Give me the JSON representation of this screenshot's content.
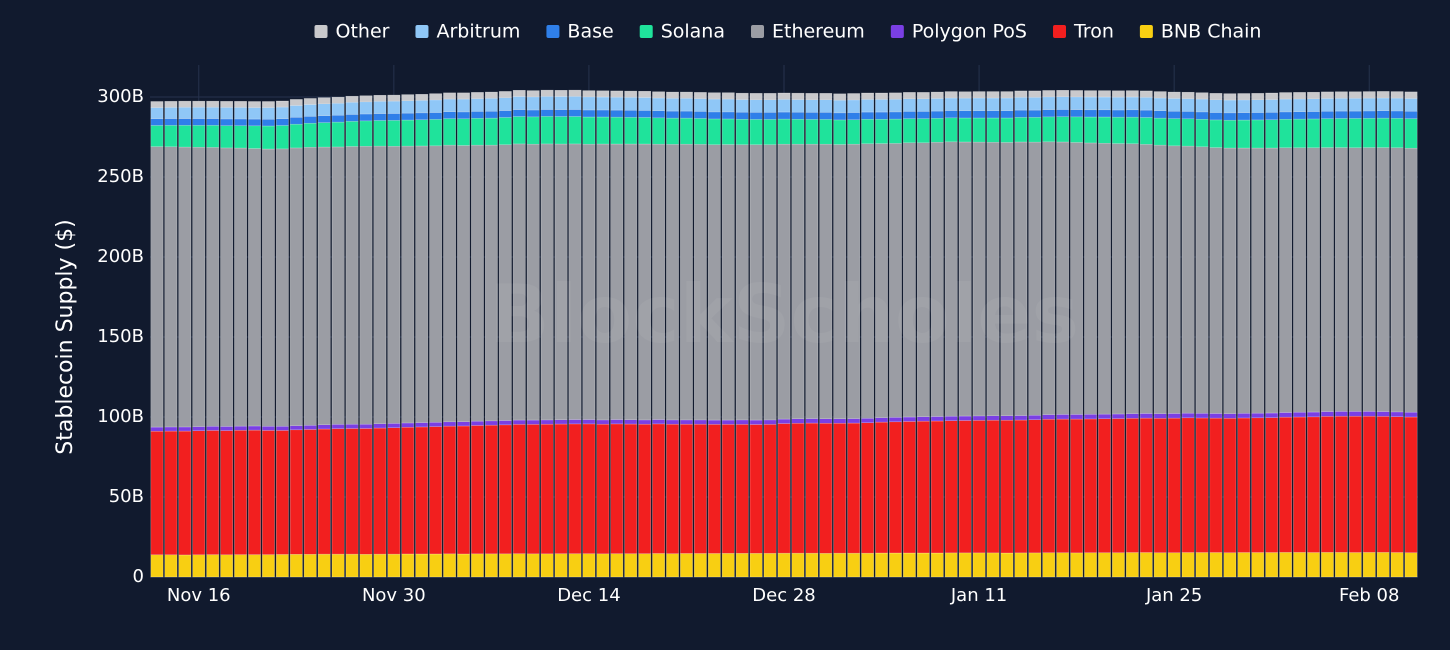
{
  "chart_data": {
    "type": "stacked_bar",
    "y_label": "Stablecoin Supply ($)",
    "watermark": "BlockScholes",
    "legend": "top",
    "grid": true,
    "ylim": [
      0,
      320
    ],
    "yticks": [
      {
        "value": 0,
        "label": "0"
      },
      {
        "value": 50,
        "label": "50B"
      },
      {
        "value": 100,
        "label": "100B"
      },
      {
        "value": 150,
        "label": "150B"
      },
      {
        "value": 200,
        "label": "200B"
      },
      {
        "value": 250,
        "label": "250B"
      },
      {
        "value": 300,
        "label": "300B"
      }
    ],
    "categories": [
      null,
      null,
      null,
      "Nov 16",
      null,
      null,
      null,
      null,
      null,
      null,
      null,
      null,
      null,
      null,
      null,
      null,
      null,
      "Nov 30",
      null,
      null,
      null,
      null,
      null,
      null,
      null,
      null,
      null,
      null,
      null,
      null,
      null,
      "Dec 14",
      null,
      null,
      null,
      null,
      null,
      null,
      null,
      null,
      null,
      null,
      null,
      null,
      null,
      "Dec 28",
      null,
      null,
      null,
      null,
      null,
      null,
      null,
      null,
      null,
      null,
      null,
      null,
      null,
      "Jan 11",
      null,
      null,
      null,
      null,
      null,
      null,
      null,
      null,
      null,
      null,
      null,
      null,
      null,
      "Jan 25",
      null,
      null,
      null,
      null,
      null,
      null,
      null,
      null,
      null,
      null,
      null,
      null,
      null,
      "Feb 08",
      null,
      null,
      null
    ],
    "series": [
      {
        "name": "Other",
        "color": "#c9c9cc",
        "values": [
          3.8,
          3.8,
          3.8,
          3.8,
          3.8,
          3.8,
          3.8,
          3.8,
          3.8,
          3.8,
          3.8,
          3.8,
          3.8,
          3.8,
          3.8,
          3.8,
          3.8,
          3.8,
          3.8,
          3.8,
          3.9,
          3.9,
          3.9,
          3.9,
          3.9,
          3.9,
          3.9,
          3.9,
          3.9,
          3.9,
          3.9,
          3.9,
          3.9,
          3.9,
          3.9,
          3.9,
          3.9,
          3.9,
          3.9,
          3.9,
          4.0,
          4.0,
          4.0,
          4.0,
          4.0,
          4.0,
          4.0,
          4.0,
          4.0,
          4.0,
          4.0,
          4.0,
          4.0,
          4.0,
          4.0,
          4.0,
          4.0,
          4.0,
          4.0,
          4.0,
          4.0,
          4.0,
          4.0,
          4.0,
          4.0,
          4.0,
          4.0,
          4.0,
          4.0,
          4.0,
          4.0,
          4.0,
          4.0,
          4.0,
          4.0,
          4.0,
          4.0,
          4.0,
          4.0,
          4.0,
          4.1,
          4.1,
          4.1,
          4.1,
          4.1,
          4.1,
          4.1,
          4.1,
          4.1,
          4.1,
          4.1
        ]
      },
      {
        "name": "Arbitrum",
        "color": "#8fc7f7",
        "values": [
          7.0,
          7.0,
          7.1,
          7.1,
          7.1,
          7.2,
          7.2,
          7.2,
          7.3,
          7.3,
          7.4,
          7.4,
          7.5,
          7.5,
          7.6,
          7.6,
          7.7,
          7.7,
          7.8,
          7.8,
          7.9,
          7.9,
          8.0,
          8.0,
          8.1,
          8.1,
          8.2,
          8.2,
          8.2,
          8.2,
          8.2,
          8.2,
          8.1,
          8.1,
          8.1,
          8.1,
          8.0,
          8.0,
          8.0,
          8.0,
          8.0,
          8.0,
          7.9,
          7.9,
          7.9,
          7.9,
          7.9,
          7.9,
          7.9,
          7.9,
          7.9,
          7.9,
          7.9,
          7.9,
          7.9,
          7.9,
          7.9,
          7.9,
          7.9,
          8.0,
          8.0,
          8.0,
          8.0,
          8.0,
          8.0,
          8.0,
          8.0,
          8.0,
          8.0,
          8.0,
          8.0,
          8.0,
          8.0,
          8.0,
          8.0,
          8.0,
          8.0,
          8.0,
          8.0,
          8.0,
          8.0,
          8.0,
          8.0,
          8.0,
          8.0,
          8.0,
          8.0,
          8.0,
          8.0,
          8.0,
          8.0
        ]
      },
      {
        "name": "Base",
        "color": "#2f7fe9",
        "values": [
          4.2,
          4.2,
          4.2,
          4.2,
          4.2,
          4.2,
          4.2,
          4.2,
          4.2,
          4.2,
          4.3,
          4.3,
          4.3,
          4.3,
          4.3,
          4.3,
          4.3,
          4.3,
          4.3,
          4.3,
          4.3,
          4.3,
          4.3,
          4.3,
          4.3,
          4.3,
          4.3,
          4.3,
          4.3,
          4.3,
          4.4,
          4.4,
          4.4,
          4.4,
          4.4,
          4.4,
          4.4,
          4.4,
          4.4,
          4.4,
          4.4,
          4.4,
          4.4,
          4.4,
          4.4,
          4.4,
          4.4,
          4.4,
          4.4,
          4.4,
          4.5,
          4.5,
          4.5,
          4.5,
          4.5,
          4.5,
          4.5,
          4.5,
          4.5,
          4.5,
          4.5,
          4.5,
          4.5,
          4.5,
          4.5,
          4.5,
          4.5,
          4.5,
          4.5,
          4.5,
          4.6,
          4.6,
          4.6,
          4.6,
          4.6,
          4.6,
          4.6,
          4.6,
          4.6,
          4.6,
          4.6,
          4.6,
          4.6,
          4.6,
          4.6,
          4.6,
          4.6,
          4.6,
          4.6,
          4.6,
          4.6
        ]
      },
      {
        "name": "Solana",
        "color": "#1fe39b",
        "values": [
          13.2,
          13.4,
          13.6,
          13.7,
          13.8,
          13.9,
          14.0,
          14.2,
          14.4,
          14.6,
          14.8,
          15.0,
          15.3,
          15.5,
          15.7,
          15.9,
          16.0,
          16.2,
          16.3,
          16.4,
          16.5,
          16.6,
          16.7,
          16.8,
          16.9,
          17.0,
          17.1,
          17.1,
          17.2,
          17.2,
          17.1,
          17.0,
          16.9,
          16.8,
          16.7,
          16.6,
          16.5,
          16.4,
          16.3,
          16.2,
          16.1,
          16.0,
          15.9,
          15.8,
          15.8,
          15.7,
          15.6,
          15.5,
          15.5,
          15.4,
          15.3,
          15.3,
          15.2,
          15.2,
          15.1,
          15.1,
          15.0,
          15.0,
          15.0,
          15.1,
          15.2,
          15.3,
          15.4,
          15.5,
          15.6,
          15.8,
          16.0,
          16.2,
          16.4,
          16.5,
          16.6,
          16.8,
          16.9,
          17.0,
          17.1,
          17.2,
          17.3,
          17.4,
          17.5,
          17.6,
          17.7,
          17.8,
          17.9,
          18.0,
          18.1,
          18.2,
          18.3,
          18.3,
          18.4,
          18.4,
          18.5
        ]
      },
      {
        "name": "Ethereum",
        "color": "#9b9da4",
        "values": [
          175.3,
          175.1,
          174.9,
          174.6,
          174.3,
          174.1,
          173.8,
          173.4,
          173.3,
          173.4,
          173.6,
          173.8,
          173.5,
          173.4,
          173.6,
          173.7,
          173.5,
          173.2,
          173.0,
          172.9,
          172.8,
          172.9,
          172.6,
          172.5,
          172.3,
          172.4,
          172.6,
          172.4,
          172.5,
          172.3,
          172.3,
          172.1,
          172.4,
          172.2,
          172.3,
          172.4,
          172.1,
          172.2,
          172.3,
          172.2,
          172.1,
          172.2,
          172.0,
          172.1,
          172.0,
          171.8,
          171.6,
          171.5,
          171.6,
          171.4,
          171.5,
          171.6,
          171.3,
          171.2,
          171.4,
          171.2,
          171.4,
          171.5,
          171.3,
          171.1,
          170.9,
          170.8,
          171.0,
          170.7,
          170.5,
          170.3,
          170.0,
          169.6,
          169.3,
          169.0,
          168.7,
          168.2,
          167.8,
          167.3,
          166.9,
          166.6,
          166.2,
          166.0,
          165.8,
          165.7,
          165.6,
          165.5,
          165.3,
          165.2,
          165.0,
          164.9,
          164.8,
          164.9,
          165.0,
          165.1,
          165.0
        ]
      },
      {
        "name": "Polygon PoS",
        "color": "#7a3fe4",
        "values": [
          2.6,
          2.6,
          2.6,
          2.6,
          2.6,
          2.6,
          2.6,
          2.6,
          2.6,
          2.6,
          2.6,
          2.6,
          2.7,
          2.7,
          2.7,
          2.7,
          2.7,
          2.7,
          2.7,
          2.7,
          2.7,
          2.7,
          2.7,
          2.7,
          2.7,
          2.7,
          2.7,
          2.7,
          2.7,
          2.7,
          2.7,
          2.7,
          2.7,
          2.7,
          2.7,
          2.7,
          2.7,
          2.7,
          2.7,
          2.7,
          2.7,
          2.7,
          2.8,
          2.8,
          2.8,
          2.8,
          2.8,
          2.8,
          2.8,
          2.8,
          2.8,
          2.8,
          2.8,
          2.8,
          2.8,
          2.8,
          2.8,
          2.8,
          2.8,
          2.8,
          2.8,
          2.8,
          2.8,
          2.8,
          2.9,
          2.9,
          2.9,
          2.9,
          2.9,
          2.9,
          2.9,
          2.9,
          2.9,
          2.9,
          2.9,
          2.9,
          2.9,
          2.9,
          2.9,
          2.9,
          2.9,
          2.9,
          3.0,
          3.0,
          3.0,
          3.0,
          3.0,
          3.0,
          3.0,
          3.0,
          3.0
        ]
      },
      {
        "name": "Tron",
        "color": "#f21f1f",
        "values": [
          77.2,
          77.3,
          77.4,
          77.5,
          77.6,
          77.6,
          77.7,
          77.8,
          77.6,
          77.5,
          77.8,
          78.0,
          78.2,
          78.4,
          78.5,
          78.6,
          78.8,
          79.0,
          79.2,
          79.4,
          79.6,
          79.8,
          80.0,
          80.2,
          80.4,
          80.6,
          80.8,
          80.9,
          81.0,
          81.0,
          81.1,
          81.1,
          81.0,
          81.1,
          81.0,
          80.9,
          81.0,
          80.9,
          80.8,
          80.8,
          80.7,
          80.6,
          80.6,
          80.5,
          80.6,
          81.0,
          81.2,
          81.3,
          81.3,
          81.2,
          81.3,
          81.5,
          81.8,
          82.0,
          82.2,
          82.4,
          82.5,
          82.6,
          82.7,
          82.8,
          82.9,
          83.0,
          83.0,
          83.2,
          83.4,
          83.5,
          83.6,
          83.6,
          83.7,
          83.8,
          83.9,
          84.0,
          84.0,
          84.1,
          84.2,
          84.1,
          84.0,
          84.0,
          84.1,
          84.2,
          84.3,
          84.5,
          84.6,
          84.8,
          85.0,
          85.1,
          85.2,
          85.1,
          85.0,
          84.9,
          84.8
        ]
      },
      {
        "name": "BNB Chain",
        "color": "#f8cf12",
        "values": [
          13.9,
          13.9,
          13.8,
          13.9,
          14.0,
          13.9,
          14.0,
          14.0,
          14.0,
          14.1,
          14.2,
          14.2,
          14.3,
          14.3,
          14.3,
          14.2,
          14.3,
          14.3,
          14.4,
          14.4,
          14.4,
          14.5,
          14.4,
          14.5,
          14.5,
          14.5,
          14.6,
          14.5,
          14.5,
          14.6,
          14.6,
          14.6,
          14.5,
          14.6,
          14.6,
          14.6,
          14.7,
          14.6,
          14.7,
          14.7,
          14.7,
          14.8,
          14.8,
          14.8,
          14.8,
          14.9,
          14.9,
          14.9,
          14.8,
          14.9,
          14.9,
          14.9,
          15.0,
          15.0,
          15.0,
          15.0,
          15.0,
          15.1,
          15.1,
          15.1,
          15.1,
          15.0,
          15.1,
          15.1,
          15.2,
          15.2,
          15.1,
          15.2,
          15.2,
          15.2,
          15.3,
          15.3,
          15.2,
          15.2,
          15.3,
          15.3,
          15.3,
          15.2,
          15.3,
          15.3,
          15.3,
          15.4,
          15.4,
          15.3,
          15.4,
          15.4,
          15.3,
          15.4,
          15.4,
          15.3,
          15.2
        ]
      }
    ]
  }
}
